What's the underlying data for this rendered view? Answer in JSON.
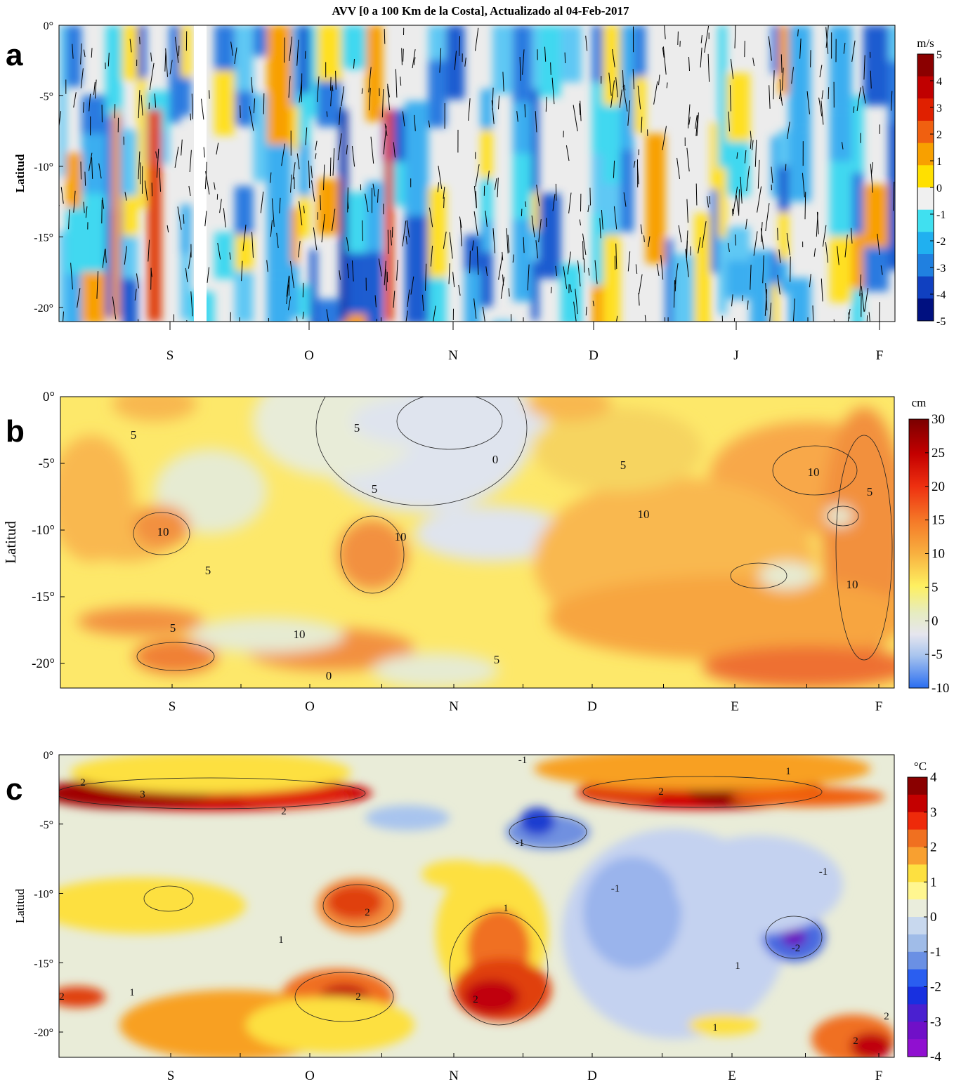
{
  "title": "AVV [0 a 100 Km de la Costa], Actualizado al 04-Feb-2017",
  "chart_data": [
    {
      "panel": "a",
      "type": "heatmap",
      "ylabel": "Latitud",
      "yticks": [
        "0°",
        "-5°",
        "-10°",
        "-15°",
        "-20°"
      ],
      "ylim": [
        -21,
        0
      ],
      "xticks": [
        "S",
        "O",
        "N",
        "D",
        "J",
        "F"
      ],
      "colorbar": {
        "unit": "m/s",
        "labels": [
          "5",
          "4",
          "3",
          "2",
          "1",
          "0",
          "-1",
          "-2",
          "-3",
          "-4",
          "-5"
        ],
        "range": [
          -5,
          5
        ],
        "colors": [
          "#8b0000",
          "#c00000",
          "#e02000",
          "#f06010",
          "#f8a000",
          "#ffe000",
          "#f0f0f0",
          "#40e0f0",
          "#20b0f0",
          "#2080e0",
          "#1040c0",
          "#001080"
        ]
      },
      "overlay": "wind-vectors"
    },
    {
      "panel": "b",
      "type": "heatmap",
      "ylabel": "Latitud",
      "yticks": [
        "0°",
        "-5°",
        "-10°",
        "-15°",
        "-20°"
      ],
      "ylim": [
        -22,
        0
      ],
      "xticks": [
        "S",
        "O",
        "N",
        "D",
        "E",
        "F"
      ],
      "colorbar": {
        "unit": "cm",
        "labels": [
          "30",
          "25",
          "20",
          "15",
          "10",
          "5",
          "0",
          "-5",
          "-10"
        ],
        "range": [
          -10,
          30
        ]
      },
      "contour_labels": [
        "5",
        "5",
        "0",
        "5",
        "10",
        "10",
        "10",
        "5",
        "5",
        "10",
        "10",
        "5",
        "10",
        "5",
        "5",
        "0"
      ]
    },
    {
      "panel": "c",
      "type": "heatmap",
      "ylabel": "Latitud",
      "yticks": [
        "0°",
        "-5°",
        "-10°",
        "-15°",
        "-20°"
      ],
      "ylim": [
        -22,
        0
      ],
      "xticks": [
        "S",
        "O",
        "N",
        "D",
        "E",
        "F"
      ],
      "colorbar": {
        "unit": "°C",
        "labels": [
          "4",
          "3",
          "2",
          "1",
          "0",
          "-1",
          "-2",
          "-3",
          "-4"
        ],
        "range": [
          -4,
          4
        ]
      },
      "contour_labels": [
        "2",
        "3",
        "2",
        "-1",
        "2",
        "1",
        "-1",
        "-1",
        "-1",
        "2",
        "1",
        "1",
        "2",
        "2",
        "-2",
        "2",
        "1",
        "2",
        "1",
        "2",
        "1"
      ]
    }
  ],
  "panels": {
    "a": "a",
    "b": "b",
    "c": "c"
  }
}
